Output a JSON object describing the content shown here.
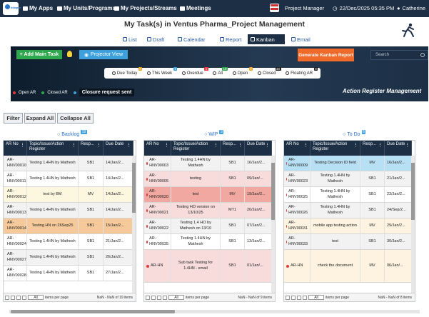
{
  "topbar": {
    "logo_text": "Integral",
    "nav": [
      "My Apps",
      "My Units/Programs",
      "My Projects/Streams",
      "Meetings"
    ],
    "role": "Project Manager",
    "datetime": "22/Dec/2025 05:35 PM",
    "user": "Catherine"
  },
  "page_title": "My Task(s) in Ventus Pharma_Project Management",
  "view_tabs": [
    {
      "label": "List",
      "icon": "list-icon"
    },
    {
      "label": "Draft",
      "icon": "draft-icon"
    },
    {
      "label": "Calendar",
      "icon": "calendar-icon"
    },
    {
      "label": "Report",
      "icon": "report-icon"
    },
    {
      "label": "Kanban",
      "icon": "kanban-icon",
      "active": true
    },
    {
      "label": "Email",
      "icon": "email-icon"
    }
  ],
  "toolbar": {
    "add_main_task": "+ Add Main Task",
    "projector_view": "Projector View",
    "generate_report": "Generate Kanban Report",
    "search_placeholder": "Search"
  },
  "filters": [
    {
      "label": "Due Today",
      "count": "0"
    },
    {
      "label": "This Week",
      "count": "3"
    },
    {
      "label": "Overdue",
      "count": "1"
    },
    {
      "label": "All",
      "count": "19"
    },
    {
      "label": "Open",
      "count": "0"
    },
    {
      "label": "Closed",
      "count": "30"
    },
    {
      "label": "Floating AR",
      "count": "0"
    }
  ],
  "legend": {
    "open": "Open AR",
    "closed": "Closed AR",
    "closure": "Closure request sent",
    "module_title": "Action Register Management"
  },
  "actions": {
    "filter": "Filter",
    "expand_all": "Expand All",
    "collapse_all": "Collapse All"
  },
  "table_headers": {
    "ar_no": "AR No",
    "topic": "Topic/Issue/Action Register",
    "resp": "Resp...",
    "due": "Due Date"
  },
  "pager": {
    "per_page_label": "items per page",
    "per_page_value": "All"
  },
  "columns": [
    {
      "title": "Backlog",
      "count": "19",
      "pager_info": "NaN - NaN of 19 items",
      "rows": [
        {
          "ar": "AR-HNV00010",
          "topic": "Testing 1.4HN by Mathesh",
          "resp": "SB1",
          "due": "14/Jan/2..."
        },
        {
          "ar": "AR-HNV00011",
          "topic": "Testing 1.4HN by Mathesh",
          "resp": "SB1",
          "due": "14/Jan/2..."
        },
        {
          "ar": "AR-HNV00012",
          "topic": "test by BM",
          "resp": "MV",
          "due": "14/Jan/2..."
        },
        {
          "ar": "AR-HNV00013",
          "topic": "Testing 1.4HN by Mathesh",
          "resp": "SB1",
          "due": "14/Jan/2..."
        },
        {
          "ar": "AR-HNV00014",
          "topic": "Testing HN on 26Sep25",
          "resp": "SB1",
          "due": "15/Jan/2..."
        },
        {
          "ar": "AR-HNV00024",
          "topic": "Testing 1.4HN by Mathesh",
          "resp": "SB1",
          "due": "21/Jan/2..."
        },
        {
          "ar": "AR-HNV00027",
          "topic": "Testing 1.4HN by Mathesh",
          "resp": "SB1",
          "due": "26/Jan/2..."
        },
        {
          "ar": "AR-HNV00028",
          "topic": "Testing 1.4HN by Mathesh",
          "resp": "SB1",
          "due": "27/Jan/2..."
        }
      ]
    },
    {
      "title": "WIP",
      "count": "9",
      "pager_info": "NaN - NaN of 9 items",
      "rows": [
        {
          "ar": "AR-HNV00003",
          "topic": "Testing 1.4HN by Mathesh",
          "resp": "SB1",
          "due": "16/Jan/2..."
        },
        {
          "ar": "AR-HNV00005",
          "topic": "testing",
          "resp": "SB1",
          "due": "09/Jan/..."
        },
        {
          "ar": "AR-HNV00020",
          "topic": "test",
          "resp": "MV",
          "due": "19/Jan/2..."
        },
        {
          "ar": "AR-HNV00021",
          "topic": "Testing HO version on 13/10/25",
          "resp": "MT1",
          "due": "20/Jan/2..."
        },
        {
          "ar": "AR-HNV00022",
          "topic": "Testing 1.4 HO by Mathesh on 13/10",
          "resp": "SB1",
          "due": "07/Jan/2..."
        },
        {
          "ar": "AR-HNV00035",
          "topic": "Testing 1.4HN by Mathesh",
          "resp": "SB1",
          "due": "13/Jan/2..."
        },
        {
          "ar": "AR-HN",
          "topic": "Sub task Testing for 1.4HN - email",
          "resp": "SB1",
          "due": "01/Jan/..."
        }
      ]
    },
    {
      "title": "To Do",
      "count": "8",
      "pager_info": "NaN - NaN of 8 items",
      "rows": [
        {
          "ar": "AR-HNV00009",
          "topic": "Testing Decision ID field",
          "resp": "MV",
          "due": "16/Jan/2..."
        },
        {
          "ar": "AR-HNV00023",
          "topic": "Testing 1.4HN by Mathesh",
          "resp": "SB1",
          "due": "21/Jan/2..."
        },
        {
          "ar": "AR-HNV00025",
          "topic": "Testing 1.4HN by Mathesh",
          "resp": "SB1",
          "due": "23/Jan/2..."
        },
        {
          "ar": "AR-HNV00026",
          "topic": "Testing 1.4HN by Mathesh",
          "resp": "SB1",
          "due": "24/Sep/2..."
        },
        {
          "ar": "AR-HNV00031",
          "topic": "mobile app testing action",
          "resp": "MV",
          "due": "29/Jan/2..."
        },
        {
          "ar": "AR-HNV00033",
          "topic": "test",
          "resp": "SB1",
          "due": "30/Jan/2..."
        },
        {
          "ar": "AR-HN",
          "topic": "check the document",
          "resp": "MV",
          "due": "06/Jan/..."
        }
      ]
    }
  ]
}
